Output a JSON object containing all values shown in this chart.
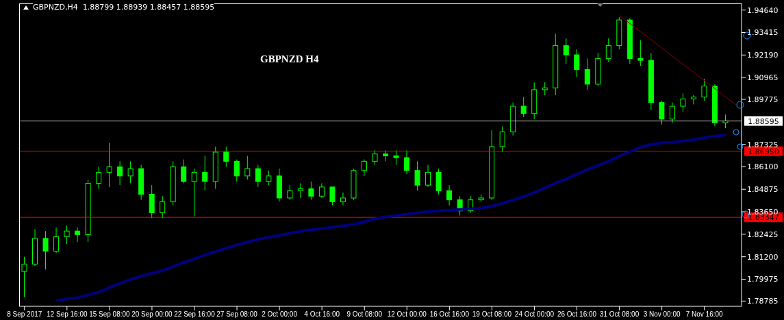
{
  "chart_data": {
    "type": "candlestick",
    "title": "GBPNZD H4",
    "annotations": [
      "GBPNZD,H4  1.88799 1.88939 1.88457 1.88595"
    ],
    "categories": [
      "8 Sep 2017",
      null,
      null,
      null,
      "12 Sep 16:00",
      null,
      null,
      null,
      "15 Sep 08:00",
      null,
      null,
      null,
      "20 Sep 00:00",
      null,
      null,
      null,
      "22 Sep 16:00",
      null,
      null,
      null,
      "27 Sep 08:00",
      null,
      null,
      null,
      "2 Oct 00:00",
      null,
      null,
      null,
      "4 Oct 16:00",
      null,
      null,
      null,
      "9 Oct 08:00",
      null,
      null,
      null,
      "12 Oct 00:00",
      null,
      null,
      null,
      "16 Oct 16:00",
      null,
      null,
      null,
      "19 Oct 08:00",
      null,
      null,
      null,
      "24 Oct 00:00",
      null,
      null,
      null,
      "26 Oct 16:00",
      null,
      null,
      null,
      "31 Oct 08:00",
      null,
      null,
      null,
      "3 Nov 00:00",
      null,
      null,
      null,
      "7 Nov 16:00",
      null,
      null,
      null
    ],
    "ylim": [
      1.785,
      1.95
    ],
    "yticks": [
      {
        "value": 1.9464,
        "label": "1.94640"
      },
      {
        "value": 1.93415,
        "label": "1.93415"
      },
      {
        "value": 1.9219,
        "label": "1.92190"
      },
      {
        "value": 1.90965,
        "label": "1.90965"
      },
      {
        "value": 1.89775,
        "label": "1.89775"
      },
      {
        "value": 1.87325,
        "label": "1.87325"
      },
      {
        "value": 1.861,
        "label": "1.86100"
      },
      {
        "value": 1.84875,
        "label": "1.84875"
      },
      {
        "value": 1.8365,
        "label": "1.83650"
      },
      {
        "value": 1.82425,
        "label": "1.82425"
      },
      {
        "value": 1.812,
        "label": "1.81200"
      },
      {
        "value": 1.79975,
        "label": "1.79975"
      },
      {
        "value": 1.78785,
        "label": "1.78785"
      }
    ],
    "grid": false,
    "series": [
      {
        "type": "candlestick",
        "color": "#00ff00",
        "ohlc": [
          [
            1.804,
            1.812,
            1.79,
            1.808
          ],
          [
            1.808,
            1.827,
            1.807,
            1.822
          ],
          [
            1.822,
            1.826,
            1.805,
            1.815
          ],
          [
            1.815,
            1.828,
            1.814,
            1.823
          ],
          [
            1.823,
            1.829,
            1.819,
            1.826
          ],
          [
            1.826,
            1.828,
            1.82,
            1.824
          ],
          [
            1.824,
            1.854,
            1.82,
            1.852
          ],
          [
            1.852,
            1.861,
            1.849,
            1.858
          ],
          [
            1.858,
            1.874,
            1.85,
            1.861
          ],
          [
            1.861,
            1.864,
            1.851,
            1.856
          ],
          [
            1.856,
            1.864,
            1.852,
            1.86
          ],
          [
            1.86,
            1.862,
            1.843,
            1.846
          ],
          [
            1.846,
            1.851,
            1.833,
            1.836
          ],
          [
            1.836,
            1.845,
            1.833,
            1.842
          ],
          [
            1.842,
            1.864,
            1.84,
            1.861
          ],
          [
            1.861,
            1.865,
            1.852,
            1.853
          ],
          [
            1.853,
            1.86,
            1.834,
            1.858
          ],
          [
            1.858,
            1.867,
            1.848,
            1.853
          ],
          [
            1.853,
            1.872,
            1.849,
            1.869
          ],
          [
            1.869,
            1.872,
            1.861,
            1.864
          ],
          [
            1.864,
            1.865,
            1.853,
            1.856
          ],
          [
            1.856,
            1.867,
            1.854,
            1.86
          ],
          [
            1.86,
            1.862,
            1.85,
            1.853
          ],
          [
            1.853,
            1.859,
            1.851,
            1.856
          ],
          [
            1.856,
            1.86,
            1.842,
            1.844
          ],
          [
            1.844,
            1.851,
            1.843,
            1.848
          ],
          [
            1.848,
            1.852,
            1.844,
            1.849
          ],
          [
            1.849,
            1.853,
            1.843,
            1.845
          ],
          [
            1.845,
            1.852,
            1.844,
            1.85
          ],
          [
            1.85,
            1.85,
            1.84,
            1.842
          ],
          [
            1.842,
            1.847,
            1.84,
            1.844
          ],
          [
            1.844,
            1.86,
            1.843,
            1.859
          ],
          [
            1.859,
            1.865,
            1.856,
            1.864
          ],
          [
            1.864,
            1.87,
            1.862,
            1.868
          ],
          [
            1.868,
            1.87,
            1.864,
            1.867
          ],
          [
            1.867,
            1.87,
            1.862,
            1.866
          ],
          [
            1.866,
            1.87,
            1.857,
            1.859
          ],
          [
            1.859,
            1.864,
            1.848,
            1.851
          ],
          [
            1.851,
            1.862,
            1.85,
            1.858
          ],
          [
            1.858,
            1.86,
            1.846,
            1.848
          ],
          [
            1.848,
            1.851,
            1.84,
            1.843
          ],
          [
            1.843,
            1.845,
            1.8345,
            1.837
          ],
          [
            1.837,
            1.845,
            1.836,
            1.843
          ],
          [
            1.843,
            1.846,
            1.842,
            1.844
          ],
          [
            1.844,
            1.881,
            1.843,
            1.872
          ],
          [
            1.872,
            1.883,
            1.869,
            1.88
          ],
          [
            1.88,
            1.896,
            1.878,
            1.894
          ],
          [
            1.894,
            1.899,
            1.888,
            1.89
          ],
          [
            1.89,
            1.907,
            1.887,
            1.903
          ],
          [
            1.903,
            1.907,
            1.9,
            1.904
          ],
          [
            1.904,
            1.9335,
            1.9,
            1.927
          ],
          [
            1.927,
            1.931,
            1.917,
            1.922
          ],
          [
            1.922,
            1.925,
            1.91,
            1.914
          ],
          [
            1.914,
            1.92,
            1.903,
            1.906
          ],
          [
            1.906,
            1.923,
            1.905,
            1.92
          ],
          [
            1.92,
            1.931,
            1.918,
            1.927
          ],
          [
            1.927,
            1.9425,
            1.925,
            1.941
          ],
          [
            1.941,
            1.942,
            1.917,
            1.92
          ],
          [
            1.92,
            1.93,
            1.916,
            1.919
          ],
          [
            1.919,
            1.923,
            1.892,
            1.896
          ],
          [
            1.896,
            1.897,
            1.884,
            1.887
          ],
          [
            1.887,
            1.896,
            1.885,
            1.894
          ],
          [
            1.894,
            1.901,
            1.891,
            1.898
          ],
          [
            1.898,
            1.9,
            1.895,
            1.899
          ],
          [
            1.899,
            1.909,
            1.897,
            1.905
          ],
          [
            1.905,
            1.906,
            1.883,
            1.885
          ],
          [
            1.885,
            1.8895,
            1.882,
            1.886
          ],
          null
        ]
      },
      {
        "type": "line",
        "color": "#000080",
        "values": [
          null,
          null,
          null,
          1.7882,
          1.789,
          1.7897,
          1.7912,
          1.7927,
          1.7952,
          1.7975,
          1.7997,
          1.8015,
          1.803,
          1.8045,
          1.8067,
          1.8089,
          1.8108,
          1.813,
          1.8148,
          1.8167,
          1.8185,
          1.82,
          1.8215,
          1.8226,
          1.8237,
          1.8248,
          1.8259,
          1.8267,
          1.8274,
          1.8281,
          1.8289,
          1.8296,
          1.8311,
          1.8326,
          1.8337,
          1.8344,
          1.8352,
          1.8359,
          1.8366,
          1.837,
          1.8374,
          1.8377,
          1.8381,
          1.8385,
          1.8396,
          1.8411,
          1.8429,
          1.8448,
          1.847,
          1.8496,
          1.8522,
          1.8544,
          1.857,
          1.8596,
          1.8618,
          1.864,
          1.8669,
          1.8692,
          1.8717,
          1.8732,
          1.874,
          1.8743,
          1.8751,
          1.8758,
          1.8769,
          1.8777,
          1.8784,
          null
        ]
      },
      {
        "type": "line",
        "color": "#8b0000",
        "values": [
          null,
          null,
          null,
          null,
          null,
          null,
          null,
          null,
          null,
          null,
          null,
          null,
          null,
          null,
          null,
          null,
          null,
          null,
          null,
          null,
          null,
          null,
          null,
          null,
          null,
          null,
          null,
          null,
          null,
          null,
          null,
          null,
          null,
          null,
          null,
          null,
          null,
          null,
          null,
          null,
          null,
          null,
          null,
          null,
          null,
          null,
          null,
          null,
          null,
          null,
          null,
          null,
          null,
          null,
          null,
          null,
          1.9434,
          null,
          null,
          null,
          null,
          null,
          null,
          null,
          null,
          null,
          null,
          1.8947
        ]
      }
    ],
    "ref_lines": [
      {
        "axis": "y",
        "value": 1.88595,
        "label": "1.88595",
        "color": "#c0c0c0"
      },
      {
        "axis": "y",
        "value": 1.8695,
        "label": "1.86950",
        "color": "#ff0000"
      },
      {
        "axis": "y",
        "value": 1.83347,
        "label": "1.83347",
        "color": "#ff0000"
      }
    ]
  }
}
